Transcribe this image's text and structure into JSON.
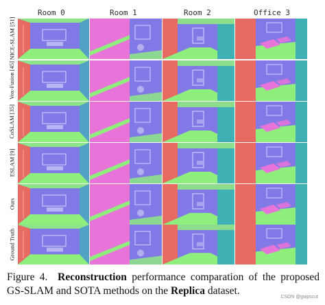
{
  "columns": [
    "Room 0",
    "Room 1",
    "Room 2",
    "Office 3"
  ],
  "rows": [
    "NICE-SLAM [51]",
    "Vox-Fusion [45]",
    "CoSLAM [35]",
    "ESLAM [9]",
    "Ours",
    "Ground Truth"
  ],
  "caption": {
    "prefix": "Figure 4.",
    "bold1": "Reconstruction",
    "text1": " performance comparation of the proposed GS-SLAM and SOTA methods on the ",
    "bold2": "Replica",
    "text2": " dataset."
  },
  "watermark": "CSDN @gwpscut",
  "colors": {
    "normal_red": "#e76a63",
    "normal_blue": "#8079e6",
    "normal_green": "#8fef7d",
    "normal_pink": "#e873d9",
    "normal_teal": "#3fb0b3"
  }
}
